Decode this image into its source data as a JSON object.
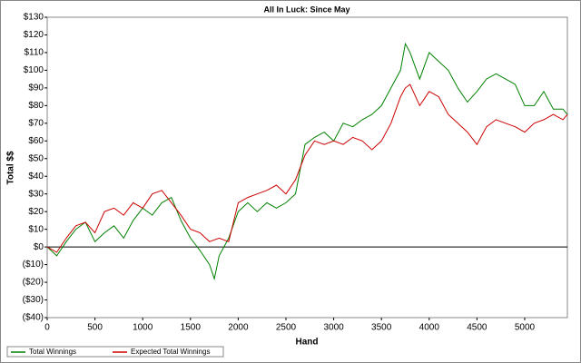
{
  "chart_data": {
    "type": "line",
    "title": "All In Luck: Since May",
    "x_label": "Hand",
    "y_label": "Total $$",
    "x": [
      0,
      100,
      200,
      300,
      400,
      500,
      600,
      700,
      800,
      900,
      1000,
      1100,
      1200,
      1300,
      1400,
      1500,
      1600,
      1700,
      1750,
      1800,
      1900,
      2000,
      2100,
      2200,
      2300,
      2400,
      2500,
      2600,
      2700,
      2800,
      2900,
      3000,
      3100,
      3200,
      3300,
      3400,
      3500,
      3600,
      3700,
      3750,
      3800,
      3900,
      4000,
      4100,
      4200,
      4300,
      4400,
      4500,
      4600,
      4700,
      4800,
      4900,
      5000,
      5100,
      5200,
      5300,
      5400,
      5447
    ],
    "series": [
      {
        "name": "Total Winnings",
        "color": "#008000",
        "values": [
          0,
          -5,
          3,
          10,
          14,
          3,
          8,
          12,
          5,
          15,
          22,
          18,
          25,
          28,
          15,
          5,
          -2,
          -10,
          -18,
          -5,
          5,
          20,
          25,
          20,
          25,
          22,
          25,
          30,
          58,
          62,
          65,
          60,
          70,
          68,
          72,
          75,
          80,
          90,
          100,
          115,
          110,
          95,
          110,
          105,
          100,
          90,
          82,
          88,
          95,
          98,
          95,
          92,
          80,
          80,
          88,
          78,
          78,
          75
        ]
      },
      {
        "name": "Expected Total Winnings",
        "color": "#cc0000",
        "values": [
          0,
          -3,
          5,
          12,
          14,
          8,
          20,
          22,
          18,
          25,
          22,
          30,
          32,
          25,
          18,
          10,
          8,
          3,
          4,
          5,
          3,
          25,
          28,
          30,
          32,
          35,
          30,
          38,
          52,
          60,
          58,
          60,
          58,
          62,
          60,
          55,
          60,
          70,
          85,
          90,
          92,
          80,
          88,
          85,
          75,
          70,
          65,
          58,
          68,
          72,
          70,
          68,
          65,
          70,
          72,
          75,
          72,
          75
        ]
      }
    ],
    "xlim": [
      0,
      5447
    ],
    "xticks": [
      0,
      500,
      1000,
      1500,
      2000,
      2500,
      3000,
      3500,
      4000,
      4500,
      5000
    ],
    "ylim": [
      -40,
      130
    ],
    "yticks": [
      {
        "value": -40,
        "label": "($40)"
      },
      {
        "value": -30,
        "label": "($30)"
      },
      {
        "value": -20,
        "label": "($20)"
      },
      {
        "value": -10,
        "label": "($10)"
      },
      {
        "value": 0,
        "label": "$0"
      },
      {
        "value": 10,
        "label": "$10"
      },
      {
        "value": 20,
        "label": "$20"
      },
      {
        "value": 30,
        "label": "$30"
      },
      {
        "value": 40,
        "label": "$40"
      },
      {
        "value": 50,
        "label": "$50"
      },
      {
        "value": 60,
        "label": "$60"
      },
      {
        "value": 70,
        "label": "$70"
      },
      {
        "value": 80,
        "label": "$80"
      },
      {
        "value": 90,
        "label": "$90"
      },
      {
        "value": 100,
        "label": "$100"
      },
      {
        "value": 110,
        "label": "$110"
      },
      {
        "value": 120,
        "label": "$120"
      },
      {
        "value": 130,
        "label": "$130"
      }
    ],
    "legend": "bottom-left"
  }
}
